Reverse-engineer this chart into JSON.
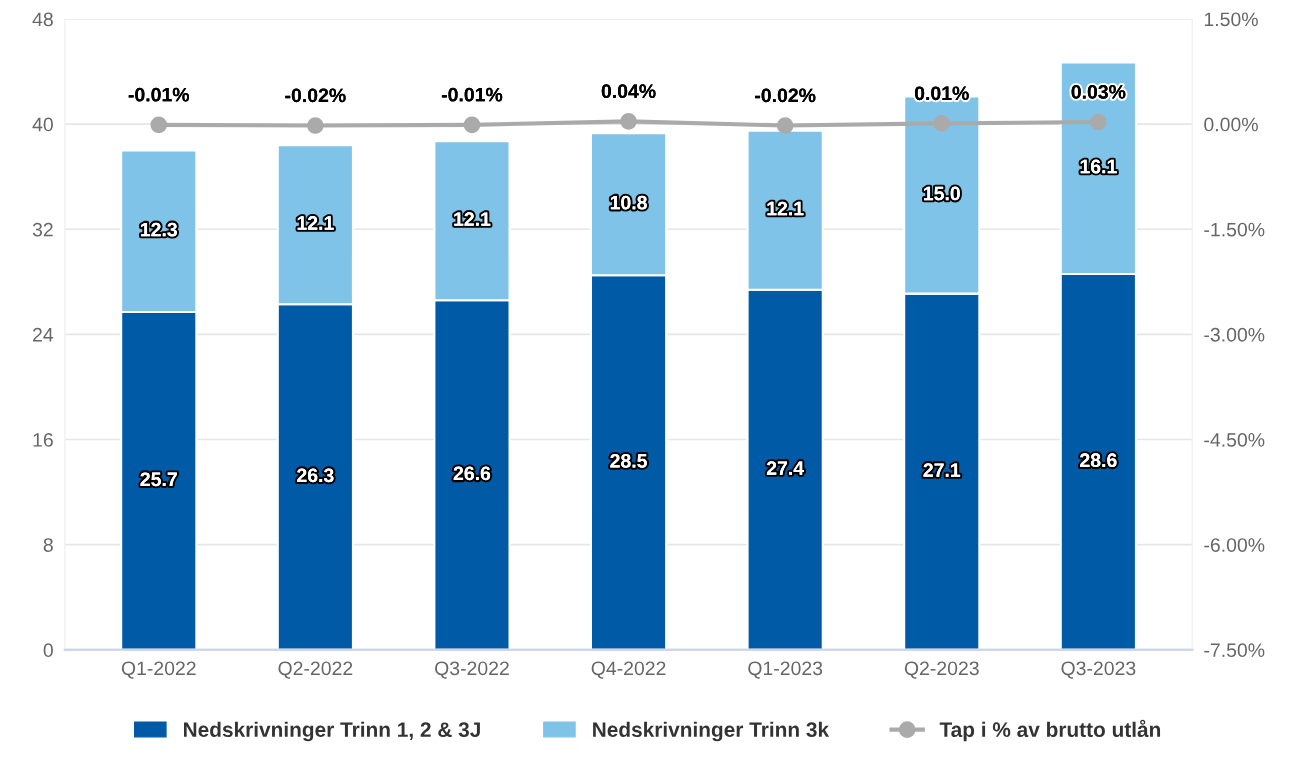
{
  "chart_data": {
    "type": "bar",
    "stacked": true,
    "categories": [
      "Q1-2022",
      "Q2-2022",
      "Q3-2022",
      "Q4-2022",
      "Q1-2023",
      "Q2-2023",
      "Q3-2023"
    ],
    "series": [
      {
        "name": "Nedskrivninger Trinn 1, 2 & 3J",
        "color": "#005aa5",
        "values": [
          25.7,
          26.3,
          26.6,
          28.5,
          27.4,
          27.1,
          28.6
        ],
        "value_labels": [
          "25.7",
          "26.3",
          "26.6",
          "28.5",
          "27.4",
          "27.1",
          "28.6"
        ]
      },
      {
        "name": "Nedskrivninger Trinn 3k",
        "color": "#7fc4e8",
        "values": [
          12.3,
          12.1,
          12.1,
          10.8,
          12.1,
          15.0,
          16.1
        ],
        "value_labels": [
          "12.3",
          "12.1",
          "12.1",
          "10.8",
          "12.1",
          "15.0",
          "16.1"
        ]
      },
      {
        "name": "Tap i % av brutto utlån",
        "type": "line",
        "axis": "y2",
        "color": "#aaaaaa",
        "marker": "circle",
        "line_style": "solid",
        "values": [
          -0.01,
          -0.02,
          -0.01,
          0.04,
          -0.02,
          0.01,
          0.03
        ],
        "value_labels": [
          "-0.01%",
          "-0.02%",
          "-0.01%",
          "0.04%",
          "-0.02%",
          "0.01%",
          "0.03%"
        ]
      }
    ],
    "ylim": [
      0,
      48
    ],
    "yticks": [
      0,
      8,
      16,
      24,
      32,
      40,
      48
    ],
    "y2lim": [
      -7.5,
      1.5
    ],
    "y2ticks": [
      {
        "value": -7.5,
        "label": "-7.50%"
      },
      {
        "value": -6.0,
        "label": "-6.00%"
      },
      {
        "value": -4.5,
        "label": "-4.50%"
      },
      {
        "value": -3.0,
        "label": "-3.00%"
      },
      {
        "value": -1.5,
        "label": "-1.50%"
      },
      {
        "value": 0.0,
        "label": "0.00%"
      },
      {
        "value": 1.5,
        "label": "1.50%"
      }
    ],
    "grid": "y",
    "legend": "bottom"
  }
}
